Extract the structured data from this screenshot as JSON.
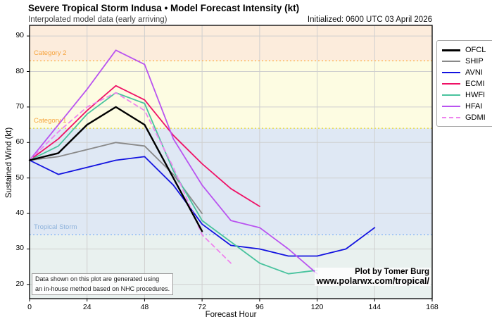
{
  "header": {
    "title": "Severe Tropical Storm Indusa • Model Forecast Intensity (kt)",
    "subtitle": "Interpolated model data (early arriving)",
    "initialized": "Initialized: 0600 UTC 03 April 2026"
  },
  "annotations": {
    "disclaimer_line1": "Data shown on this plot are generated using",
    "disclaimer_line2": "an in-house method based on NHC procedures.",
    "credit_line1": "Plot by Tomer Burg",
    "credit_line2": "www.polarwx.com/tropical/"
  },
  "chart_data": {
    "type": "line",
    "title": "Severe Tropical Storm Indusa • Model Forecast Intensity (kt)",
    "xlabel": "Forecast Hour",
    "ylabel": "Sustained Wind (kt)",
    "xlim": [
      0,
      168
    ],
    "ylim": [
      16,
      93
    ],
    "xticks": [
      0,
      24,
      48,
      72,
      96,
      120,
      144,
      168
    ],
    "yticks": [
      20,
      30,
      40,
      50,
      60,
      70,
      80,
      90
    ],
    "grid": true,
    "legend_position": "outside-top-right",
    "grid_color": "#cfcfcf",
    "bands": [
      {
        "name": "category-2-band",
        "from": 83,
        "to": 93,
        "color": "#fcecdc"
      },
      {
        "name": "category-1-band",
        "from": 64,
        "to": 83,
        "color": "#fdfce2"
      },
      {
        "name": "tropical-storm-band",
        "from": 34,
        "to": 64,
        "color": "#dfe8f4"
      },
      {
        "name": "below-tropical-storm-band",
        "from": 16,
        "to": 34,
        "color": "#e9f1ef"
      }
    ],
    "thresholds": [
      {
        "label": "Category 2",
        "value": 83,
        "line_color": "#ffab40",
        "label_color": "#f6a33c"
      },
      {
        "label": "Category 1",
        "value": 64,
        "line_color": "#e8d92e",
        "label_color": "#f6a33c"
      },
      {
        "label": "Tropical Storm",
        "value": 34,
        "line_color": "#86b6f5",
        "label_color": "#8fb3dc"
      }
    ],
    "series": [
      {
        "name": "OFCL",
        "color": "#000000",
        "width": 2.4,
        "dash": null,
        "hours": [
          0,
          12,
          24,
          36,
          48,
          60,
          72
        ],
        "values": [
          55,
          57,
          65,
          70,
          65,
          50,
          35
        ]
      },
      {
        "name": "SHIP",
        "color": "#898989",
        "width": 1.8,
        "dash": null,
        "hours": [
          0,
          12,
          24,
          36,
          48,
          60,
          72
        ],
        "values": [
          55,
          56,
          58,
          60,
          59,
          51,
          40
        ]
      },
      {
        "name": "AVNI",
        "color": "#1313e0",
        "width": 1.8,
        "dash": null,
        "hours": [
          0,
          12,
          24,
          36,
          48,
          60,
          72,
          84,
          96,
          108,
          120,
          132,
          144
        ],
        "values": [
          55,
          51,
          53,
          55,
          56,
          48,
          37,
          31,
          30,
          28,
          28,
          30,
          36
        ]
      },
      {
        "name": "ECMI",
        "color": "#ef1166",
        "width": 1.8,
        "dash": null,
        "hours": [
          0,
          12,
          24,
          36,
          48,
          60,
          72,
          84,
          96
        ],
        "values": [
          55,
          61,
          69,
          76,
          72,
          62,
          54,
          47,
          42
        ]
      },
      {
        "name": "HWFI",
        "color": "#49c39e",
        "width": 1.8,
        "dash": null,
        "hours": [
          0,
          12,
          24,
          36,
          48,
          60,
          72,
          84,
          96,
          108,
          120
        ],
        "values": [
          55,
          59,
          68,
          74,
          71,
          52,
          38,
          32,
          26,
          23,
          24
        ]
      },
      {
        "name": "HFAI",
        "color": "#b953f0",
        "width": 1.8,
        "dash": null,
        "hours": [
          0,
          12,
          24,
          36,
          48,
          60,
          72,
          84,
          96,
          108,
          120
        ],
        "values": [
          55,
          65,
          75,
          86,
          82,
          61,
          48,
          38,
          36,
          30,
          23
        ]
      },
      {
        "name": "GDMI",
        "color": "#ee84ee",
        "width": 1.8,
        "dash": "6 5",
        "hours": [
          0,
          12,
          24,
          36,
          48,
          60,
          72,
          84
        ],
        "values": [
          55,
          63,
          70,
          74,
          69,
          53,
          34,
          26
        ]
      }
    ]
  }
}
